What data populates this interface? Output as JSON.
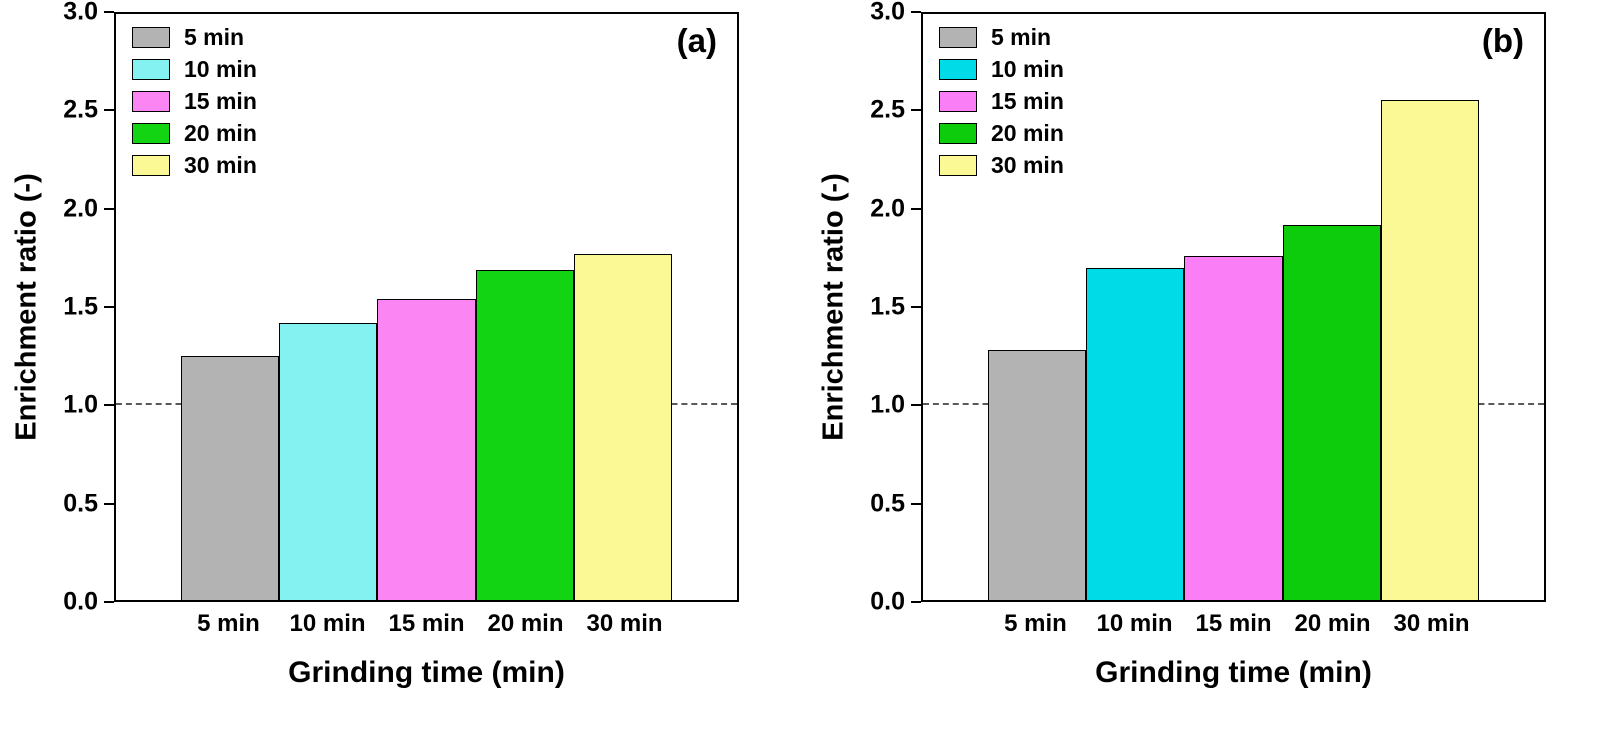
{
  "chart_data": [
    {
      "type": "bar",
      "panel_label": "(a)",
      "ylabel": "Enrichment ratio (-)",
      "xlabel": "Grinding time (min)",
      "categories": [
        "5 min",
        "10 min",
        "15 min",
        "20 min",
        "30 min"
      ],
      "values": [
        1.25,
        1.42,
        1.54,
        1.69,
        1.77
      ],
      "colors": [
        "#b3b3b3",
        "#85f2f2",
        "#fb85f2",
        "#12d412",
        "#fbf896"
      ],
      "legend": [
        "5 min",
        "10 min",
        "15 min",
        "20 min",
        "30 min"
      ],
      "ylim": [
        0,
        3
      ],
      "yticks": [
        "0.0",
        "0.5",
        "1.0",
        "1.5",
        "2.0",
        "2.5",
        "3.0"
      ],
      "reference_line": 1.0,
      "grid": false,
      "legend_position": "top-left"
    },
    {
      "type": "bar",
      "panel_label": "(b)",
      "ylabel": "Enrichment ratio (-)",
      "xlabel": "Grinding time (min)",
      "categories": [
        "5 min",
        "10 min",
        "15 min",
        "20 min",
        "30 min"
      ],
      "values": [
        1.28,
        1.7,
        1.76,
        1.92,
        2.56
      ],
      "colors": [
        "#b3b3b3",
        "#00dbe8",
        "#fa7ef5",
        "#0ccc0c",
        "#fbf896"
      ],
      "legend": [
        "5 min",
        "10 min",
        "15 min",
        "20 min",
        "30 min"
      ],
      "ylim": [
        0,
        3
      ],
      "yticks": [
        "0.0",
        "0.5",
        "1.0",
        "1.5",
        "2.0",
        "2.5",
        "3.0"
      ],
      "reference_line": 1.0,
      "grid": false,
      "legend_position": "top-left"
    }
  ]
}
